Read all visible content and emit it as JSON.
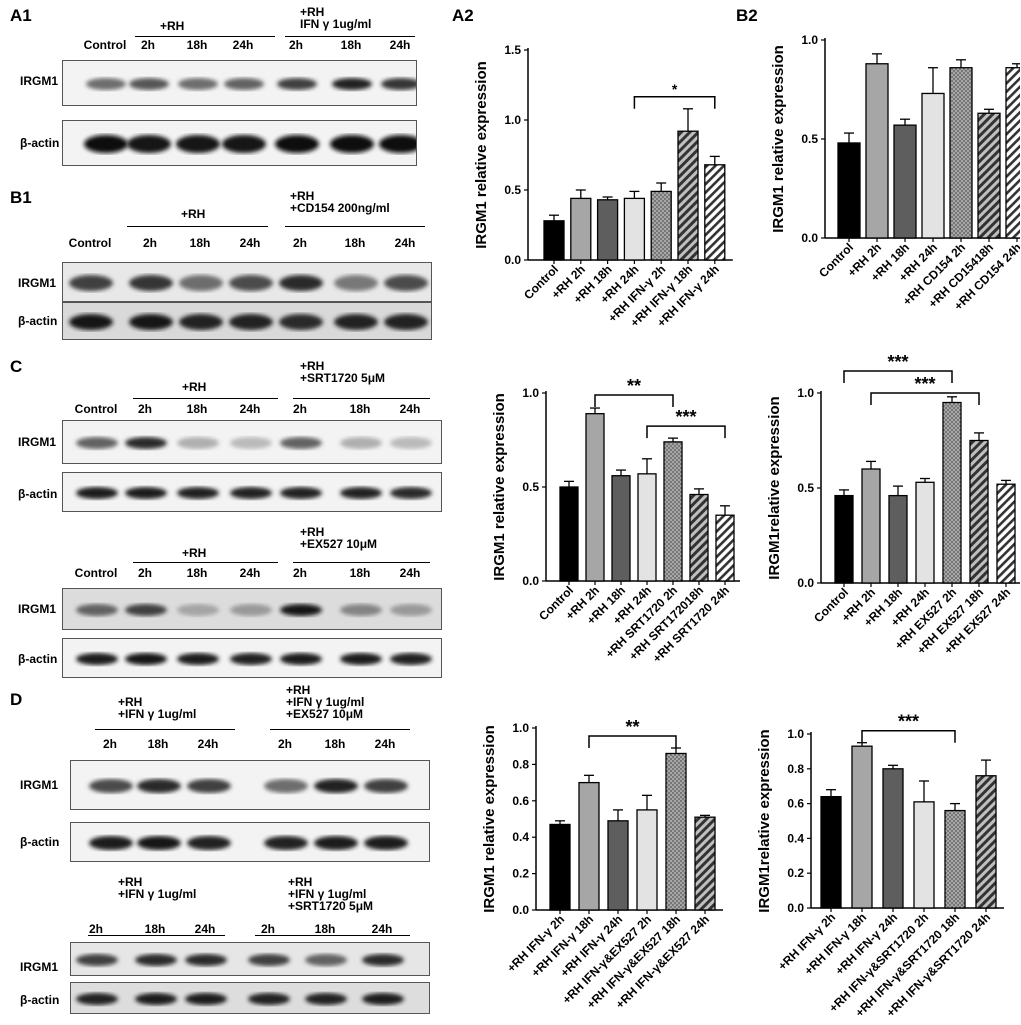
{
  "panels": {
    "A1": {
      "letter": "A1",
      "group1_heading": "+RH",
      "group2_heading": "+RH\nIFN γ 1ug/ml",
      "lanes": [
        "Control",
        "2h",
        "18h",
        "24h",
        "2h",
        "18h",
        "24h"
      ],
      "band_rows": [
        "IRGM1",
        "β-actin"
      ]
    },
    "B1": {
      "letter": "B1",
      "group1_heading": "+RH",
      "group2_heading": "+RH\n+CD154 200ng/ml",
      "lanes": [
        "Control",
        "2h",
        "18h",
        "24h",
        "2h",
        "18h",
        "24h"
      ],
      "band_rows": [
        "IRGM1",
        "β-actin"
      ]
    },
    "C": {
      "letter": "C",
      "blot1_group1_heading": "+RH",
      "blot1_group2_heading": "+RH\n+SRT1720 5μM",
      "blot2_group1_heading": "+RH",
      "blot2_group2_heading": "+RH\n+EX527 10μM",
      "lanes": [
        "Control",
        "2h",
        "18h",
        "24h",
        "2h",
        "18h",
        "24h"
      ],
      "band_rows": [
        "IRGM1",
        "β-actin"
      ]
    },
    "D": {
      "letter": "D",
      "blot1_group1_heading": "+RH\n+IFN γ 1ug/ml",
      "blot1_group2_heading": "+RH\n+IFN γ 1ug/ml\n+EX527 10μM",
      "blot2_group1_heading": "+RH\n+IFN γ 1ug/ml",
      "blot2_group2_heading": "+RH\n+IFN γ 1ug/ml\n+SRT1720 5μM",
      "lanes": [
        "2h",
        "18h",
        "24h",
        "2h",
        "18h",
        "24h"
      ],
      "band_rows": [
        "IRGM1",
        "β-actin"
      ]
    },
    "A2": {
      "letter": "A2"
    },
    "B2": {
      "letter": "B2"
    }
  },
  "chart_data": [
    {
      "id": "A2",
      "type": "bar",
      "categories": [
        "Control",
        "+RH 2h",
        "+RH 18h",
        "+RH 24h",
        "+RH IFN-γ 2h",
        "+RH IFN-γ 18h",
        "+RH IFN-γ 24h"
      ],
      "values": [
        0.28,
        0.44,
        0.43,
        0.44,
        0.49,
        0.92,
        0.68
      ],
      "errors": [
        0.04,
        0.06,
        0.02,
        0.05,
        0.06,
        0.16,
        0.06
      ],
      "patterns": [
        "black",
        "gray",
        "dark",
        "light",
        "dots",
        "hatch-dark",
        "hatch-light"
      ],
      "ylabel": "IRGM1 relative expression",
      "ylim": [
        0,
        1.5
      ],
      "yticks": [
        "0.0",
        "0.5",
        "1.0",
        "1.5"
      ],
      "ytick_values": [
        0,
        0.5,
        1.0,
        1.5
      ],
      "significance": [
        {
          "from": 3,
          "to": 6,
          "label": "*"
        }
      ]
    },
    {
      "id": "B2",
      "type": "bar",
      "categories": [
        "Control",
        "+RH 2h",
        "+RH 18h",
        "+RH 24h",
        "+RH CD154 2h",
        "+RH CD15418h",
        "+RH CD154 24h"
      ],
      "values": [
        0.48,
        0.88,
        0.57,
        0.73,
        0.86,
        0.63,
        0.86
      ],
      "errors": [
        0.05,
        0.05,
        0.03,
        0.13,
        0.04,
        0.02,
        0.02
      ],
      "patterns": [
        "black",
        "gray",
        "dark",
        "light",
        "dots",
        "hatch-dark",
        "hatch-light"
      ],
      "ylabel": "IRGM1 relative expression",
      "ylim": [
        0,
        1.0
      ],
      "yticks": [
        "0.0",
        "0.5",
        "1.0"
      ],
      "ytick_values": [
        0,
        0.5,
        1.0
      ],
      "significance": []
    },
    {
      "id": "C1",
      "type": "bar",
      "categories": [
        "Control",
        "+RH 2h",
        "+RH 18h",
        "+RH 24h",
        "+RH SRT1720 2h",
        "+RH SRT172018h",
        "+RH SRT1720 24h"
      ],
      "values": [
        0.5,
        0.89,
        0.56,
        0.57,
        0.74,
        0.46,
        0.35
      ],
      "errors": [
        0.03,
        0.03,
        0.03,
        0.08,
        0.02,
        0.03,
        0.05
      ],
      "patterns": [
        "black",
        "gray",
        "dark",
        "light",
        "dots",
        "hatch-dark",
        "hatch-light"
      ],
      "ylabel": "IRGM1 relative expression",
      "ylim": [
        0,
        1.0
      ],
      "yticks": [
        "0.0",
        "0.5",
        "1.0"
      ],
      "ytick_values": [
        0,
        0.5,
        1.0
      ],
      "significance": [
        {
          "from": 1,
          "to": 4,
          "label": "**"
        },
        {
          "from": 3,
          "to": 6,
          "label": "***"
        }
      ]
    },
    {
      "id": "C2",
      "type": "bar",
      "categories": [
        "Control",
        "+RH 2h",
        "+RH 18h",
        "+RH 24h",
        "+RH EX527 2h",
        "+RH EX527 18h",
        "+RH EX527 24h"
      ],
      "values": [
        0.46,
        0.6,
        0.46,
        0.53,
        0.95,
        0.75,
        0.52
      ],
      "errors": [
        0.03,
        0.04,
        0.05,
        0.02,
        0.03,
        0.04,
        0.02
      ],
      "patterns": [
        "black",
        "gray",
        "dark",
        "light",
        "dots",
        "hatch-dark",
        "hatch-light"
      ],
      "ylabel": "IRGM1relative expression",
      "ylim": [
        0,
        1.0
      ],
      "yticks": [
        "0.0",
        "0.5",
        "1.0"
      ],
      "ytick_values": [
        0,
        0.5,
        1.0
      ],
      "significance": [
        {
          "from": 0,
          "to": 4,
          "label": "***"
        },
        {
          "from": 1,
          "to": 5,
          "label": "***"
        }
      ]
    },
    {
      "id": "D1",
      "type": "bar",
      "categories": [
        "+RH IFN-γ 2h",
        "+RH IFN-γ 18h",
        "+RH IFN-γ 24h",
        "+RH IFN-γ&EX527 2h",
        "+RH IFN-γ&EX527 18h",
        "+RH IFN-γ&EX527 24h"
      ],
      "values": [
        0.47,
        0.7,
        0.49,
        0.55,
        0.86,
        0.51
      ],
      "errors": [
        0.02,
        0.04,
        0.06,
        0.08,
        0.03,
        0.01
      ],
      "patterns": [
        "black",
        "gray",
        "dark",
        "light",
        "dots",
        "hatch-dark"
      ],
      "ylabel": "IRGM1 relative expression",
      "ylim": [
        0,
        1.0
      ],
      "yticks": [
        "0.0",
        "0.2",
        "0.4",
        "0.6",
        "0.8",
        "1.0"
      ],
      "ytick_values": [
        0,
        0.2,
        0.4,
        0.6,
        0.8,
        1.0
      ],
      "significance": [
        {
          "from": 1,
          "to": 4,
          "label": "**"
        }
      ]
    },
    {
      "id": "D2",
      "type": "bar",
      "categories": [
        "+RH IFN-γ 2h",
        "+RH IFN-γ 18h",
        "+RH IFN-γ 24h",
        "+RH IFN-γ&SRT1720 2h",
        "+RH IFN-γ&SRT1720 18h",
        "+RH IFN-γ&SRT1720 24h"
      ],
      "values": [
        0.64,
        0.93,
        0.8,
        0.61,
        0.56,
        0.76
      ],
      "errors": [
        0.04,
        0.02,
        0.02,
        0.12,
        0.04,
        0.09
      ],
      "patterns": [
        "black",
        "gray",
        "dark",
        "light",
        "dots",
        "hatch-dark"
      ],
      "ylabel": "IRGM1relative expression",
      "ylim": [
        0,
        1.0
      ],
      "yticks": [
        "0.0",
        "0.2",
        "0.4",
        "0.6",
        "0.8",
        "1.0"
      ],
      "ytick_values": [
        0,
        0.2,
        0.4,
        0.6,
        0.8,
        1.0
      ],
      "significance": [
        {
          "from": 1,
          "to": 4,
          "label": "***"
        }
      ]
    }
  ],
  "colors": {
    "black": "#000000",
    "gray": "#a6a6a6",
    "dark": "#5e5e5e",
    "light": "#e3e3e3"
  }
}
